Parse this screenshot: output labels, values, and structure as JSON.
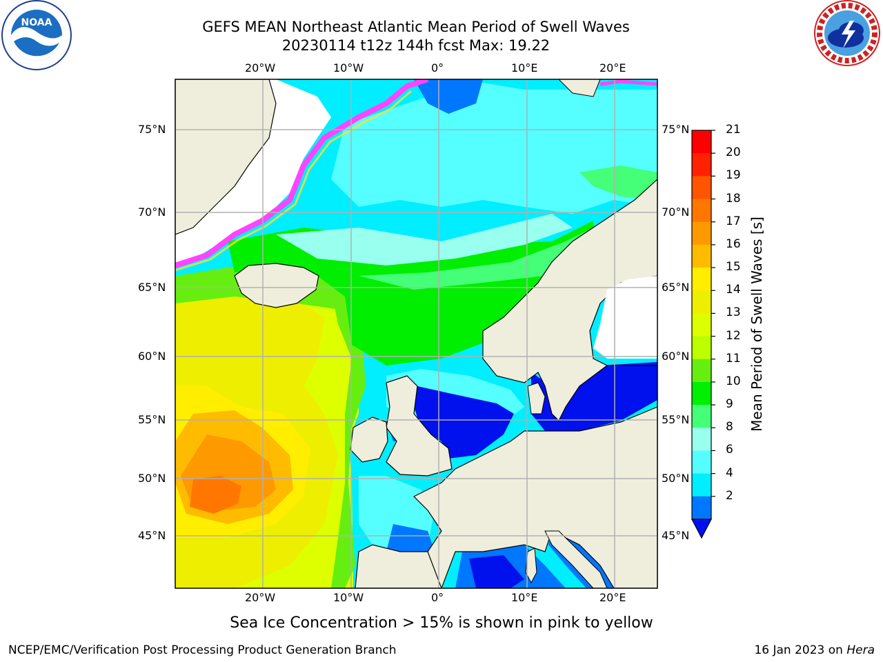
{
  "header": {
    "title_line1": "GEFS MEAN Northeast Atlantic Mean Period of Swell Waves",
    "title_line2": "20230114 t12z 144h fcst   Max: 19.22"
  },
  "logos": {
    "left": "noaa-logo",
    "right": "national-weather-service-logo"
  },
  "map": {
    "region": "Northeast Atlantic",
    "longitude_ticks": [
      "20°W",
      "10°W",
      "0°",
      "10°E",
      "20°E"
    ],
    "latitude_ticks": [
      "75°N",
      "70°N",
      "65°N",
      "60°N",
      "55°N",
      "50°N",
      "45°N"
    ],
    "colors": {
      "land": "#efeedd",
      "coastline": "#000000",
      "gridline": "#b0b0b0",
      "ice_pink": "#ff44ff",
      "ice_yellow": "#ffe030",
      "no_data": "#ffffff"
    }
  },
  "colorbar": {
    "label": "Mean Period of Swell Waves [s]",
    "ticks": [
      "21",
      "20",
      "19",
      "18",
      "17",
      "16",
      "15",
      "14",
      "13",
      "12",
      "11",
      "10",
      "9",
      "8",
      "6",
      "4",
      "2"
    ],
    "colors_top_to_bottom": [
      "#ff0000",
      "#ff2200",
      "#ff5500",
      "#ff7700",
      "#ff9900",
      "#ffbb00",
      "#ffee00",
      "#eeee00",
      "#ddff00",
      "#bbff00",
      "#66ee11",
      "#00ee00",
      "#44ff77",
      "#99ffee",
      "#55ffff",
      "#00eeff",
      "#0077ff"
    ],
    "extend_color": "#0011ee"
  },
  "footer": {
    "note": "Sea Ice Concentration > 15% is shown in pink to yellow",
    "credit": "NCEP/EMC/Verification Post Processing Product Generation Branch",
    "date": "16 Jan 2023 on",
    "machine": "Hera"
  }
}
